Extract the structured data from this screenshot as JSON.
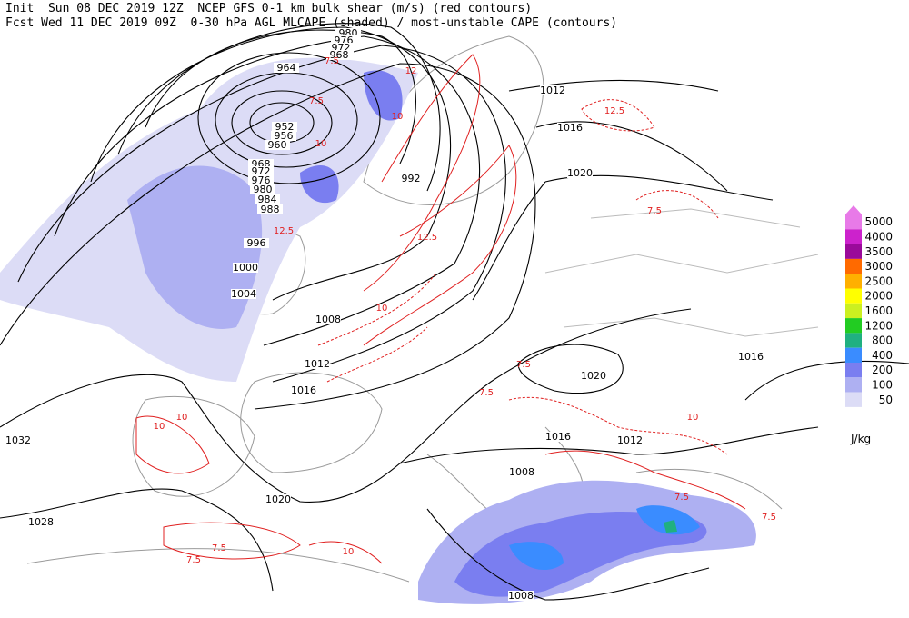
{
  "header": {
    "line1": "Init  Sun 08 DEC 2019 12Z  NCEP GFS 0-1 km bulk shear (m/s) (red contours)",
    "line2": "Fcst Wed 11 DEC 2019 09Z  0-30 hPa AGL MLCAPE (shaded) / most-unstable CAPE (contours)"
  },
  "isobar_labels": [
    980,
    976,
    972,
    968,
    964,
    952,
    956,
    960,
    968,
    972,
    976,
    980,
    984,
    988,
    992,
    996,
    1000,
    1004,
    1008,
    1012,
    1016,
    1012,
    1016,
    1020,
    1020,
    1016,
    1016,
    1012,
    1008,
    1008,
    1020,
    1028,
    1032
  ],
  "shear_labels": [
    "7.5",
    "7.5",
    "10",
    "10",
    "12",
    "12.5",
    "12.5",
    "12.5",
    "7.5",
    "7.5",
    "7.5",
    "10",
    "10",
    "10",
    "7.5",
    "7.5",
    "7.5",
    "7.5",
    "10",
    "10"
  ],
  "legend": {
    "items": [
      {
        "value": 5000,
        "color": "#e87ae8"
      },
      {
        "value": 4000,
        "color": "#cc22cc"
      },
      {
        "value": 3500,
        "color": "#9a0a9a"
      },
      {
        "value": 3000,
        "color": "#ff6a00"
      },
      {
        "value": 2500,
        "color": "#ffb000"
      },
      {
        "value": 2000,
        "color": "#ffff00"
      },
      {
        "value": 1600,
        "color": "#ccf020"
      },
      {
        "value": 1200,
        "color": "#22cc22"
      },
      {
        "value": 800,
        "color": "#20b080"
      },
      {
        "value": 400,
        "color": "#3a8cff"
      },
      {
        "value": 200,
        "color": "#7a7ef0"
      },
      {
        "value": 100,
        "color": "#aeb0f2"
      },
      {
        "value": 50,
        "color": "#dcdcf6"
      }
    ],
    "unit": "J/kg"
  }
}
